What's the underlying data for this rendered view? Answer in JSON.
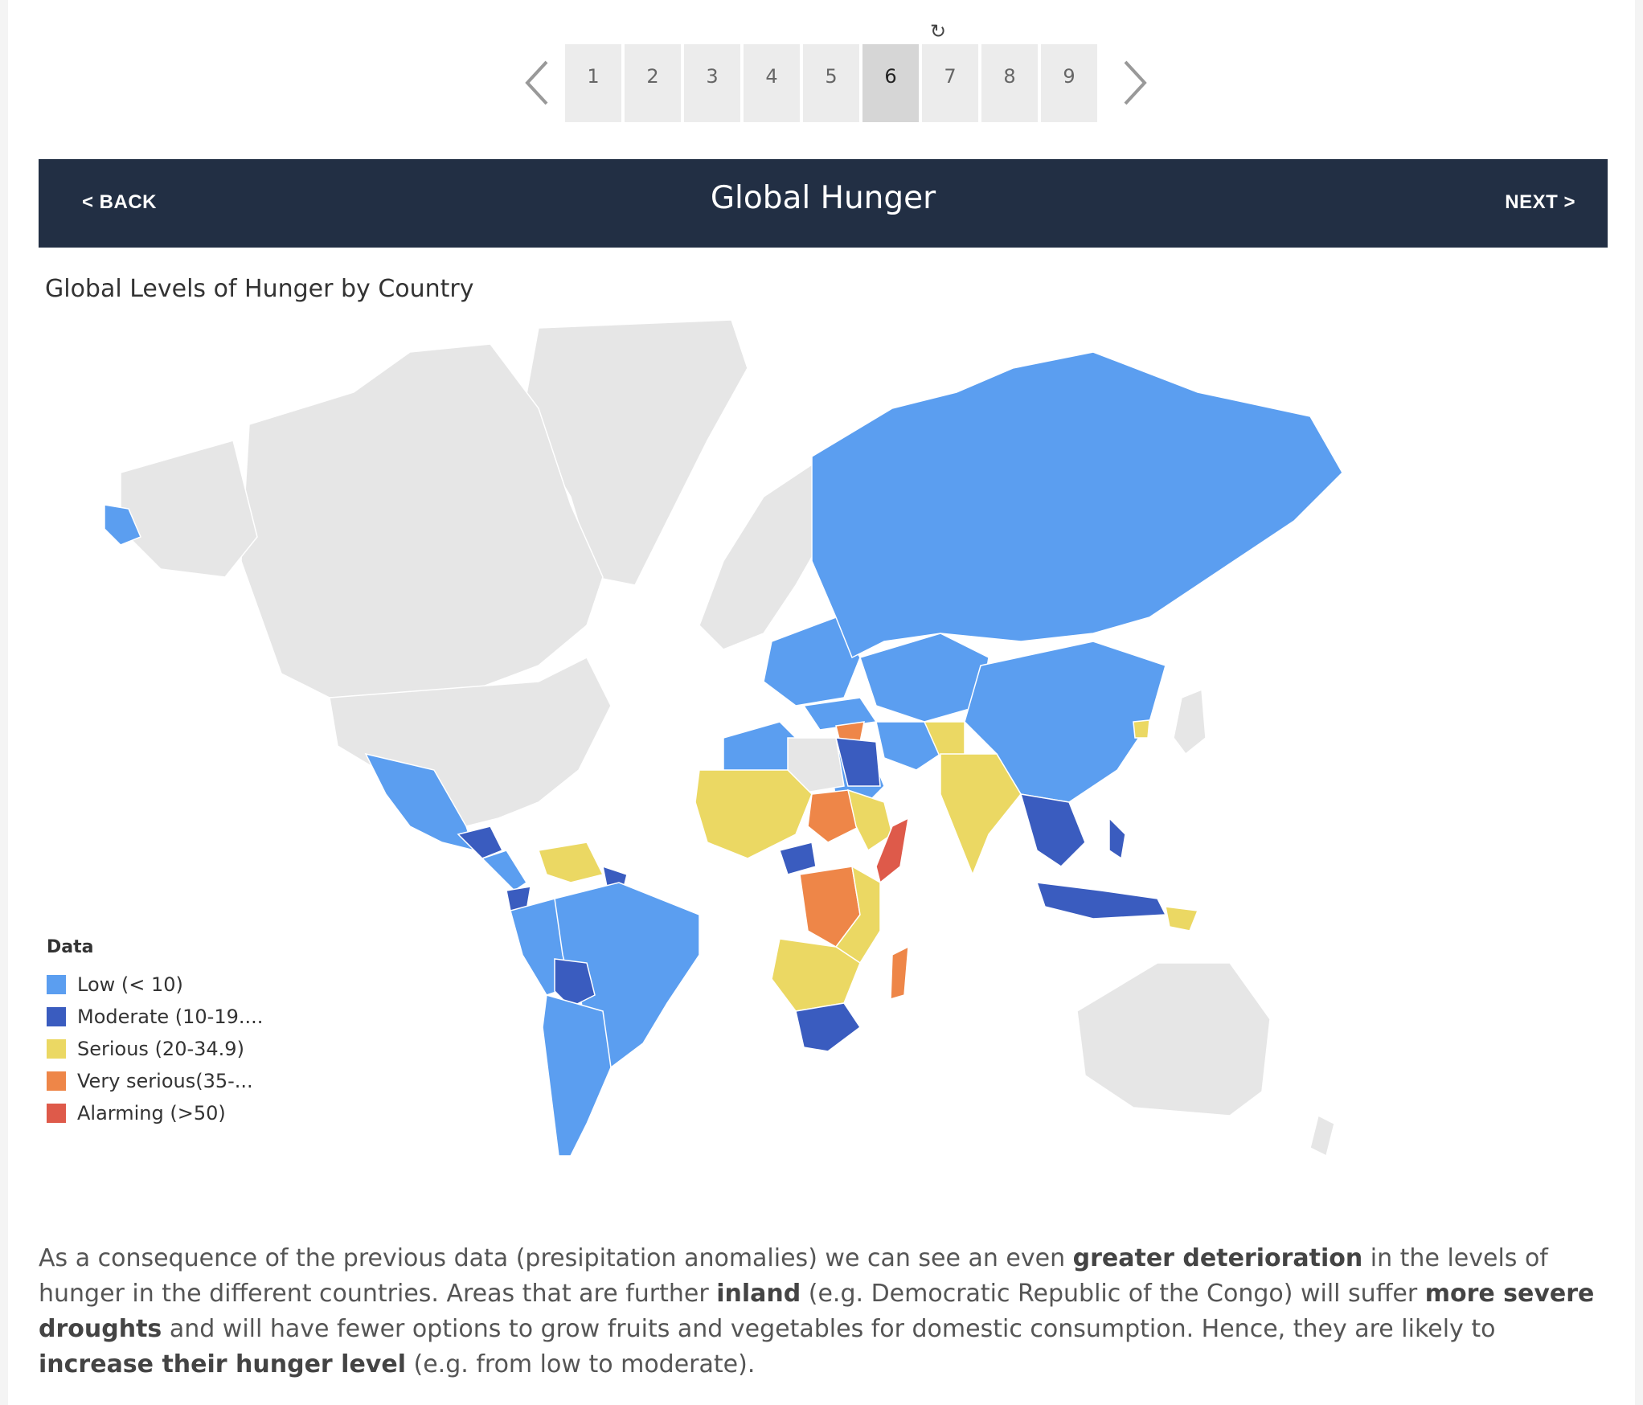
{
  "pager": {
    "reset_icon": "reset-icon",
    "prev_icon": "chevron-left-icon",
    "next_icon": "chevron-right-icon",
    "pages": [
      "1",
      "2",
      "3",
      "4",
      "5",
      "6",
      "7",
      "8",
      "9"
    ],
    "active_page": "6"
  },
  "header": {
    "back_label": "< BACK",
    "title": "Global Hunger",
    "next_label": "NEXT >"
  },
  "map": {
    "title": "Global Levels of Hunger by Country",
    "no_data_color": "#e6e6e6",
    "legend": {
      "title": "Data",
      "items": [
        {
          "label": "Low (< 10)",
          "color": "#5b9ef0"
        },
        {
          "label": "Moderate (10-19....",
          "color": "#3a5cbf"
        },
        {
          "label": "Serious (20-34.9)",
          "color": "#ebd863"
        },
        {
          "label": "Very serious(35-...",
          "color": "#ee8648"
        },
        {
          "label": "Alarming (>50)",
          "color": "#de5a4a"
        }
      ]
    }
  },
  "caption": {
    "p1": "As a consequence of the previous data (presipitation anomalies) we can see an even ",
    "b1": "greater deterioration",
    "p2": " in the levels of hunger in the different countries. Areas that are further ",
    "b2": "inland",
    "p3": " (e.g. Democratic Republic of the Congo) will suffer ",
    "b3": "more severe droughts",
    "p4": " and will have fewer options to grow fruits and vegetables for domestic consumption. Hence, they are likely to ",
    "b4": "increase their hunger level",
    "p5": " (e.g. from low to moderate)."
  }
}
